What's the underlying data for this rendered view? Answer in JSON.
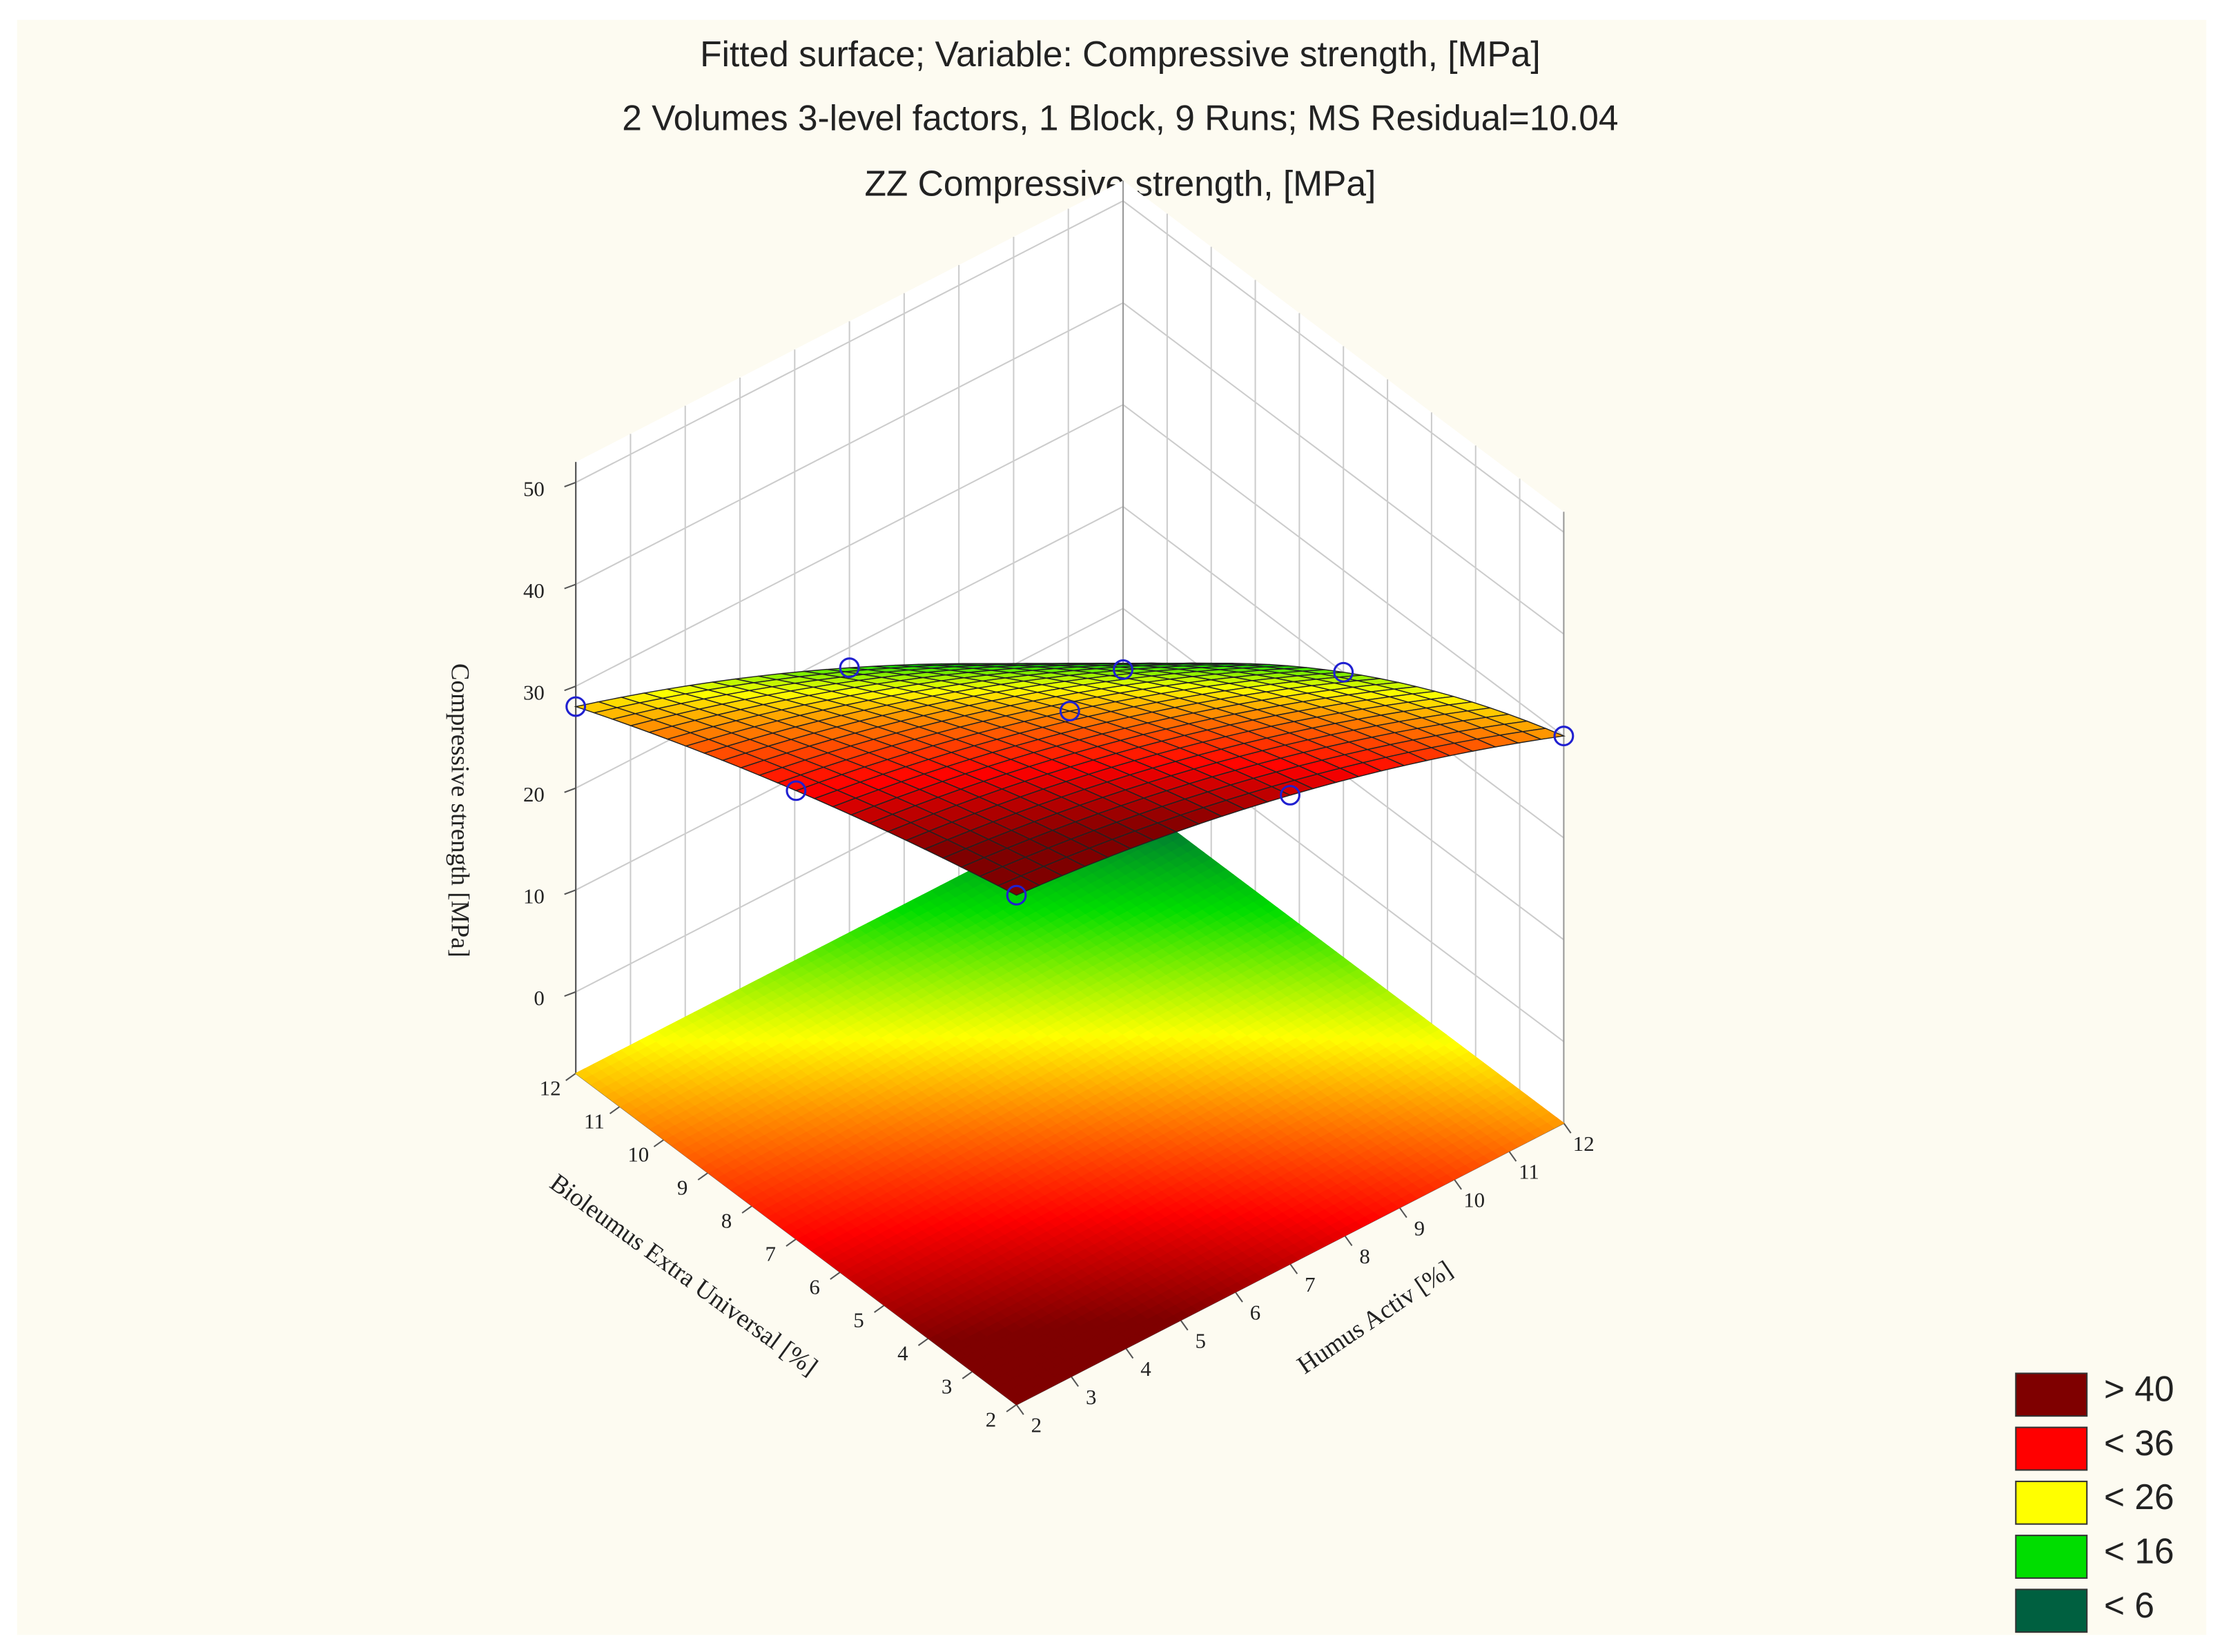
{
  "chart_data": {
    "type": "surface3d",
    "title": "Fitted surface; Variable: Compressive strength, [MPa]",
    "subtitle": "2 Volumes 3-level factors, 1 Block, 9 Runs; MS Residual=10.04",
    "caption": "ZZ Compressive strength, [MPa]",
    "xlabel": "Humus Activ [%]",
    "ylabel": "Bioleumus Extra Universal [%]",
    "zlabel": "Compressive strength [MPa]",
    "xlim": [
      2,
      12
    ],
    "ylim": [
      2,
      12
    ],
    "zlim": [
      -8,
      52
    ],
    "xticks": [
      2,
      3,
      4,
      5,
      6,
      7,
      8,
      9,
      10,
      11,
      12
    ],
    "yticks": [
      2,
      3,
      4,
      5,
      6,
      7,
      8,
      9,
      10,
      11,
      12
    ],
    "zticks": [
      0,
      10,
      20,
      30,
      40,
      50
    ],
    "points": {
      "x": [
        2,
        2,
        2,
        7,
        7,
        7,
        12,
        12,
        12
      ],
      "y": [
        2,
        7,
        12,
        2,
        7,
        12,
        2,
        7,
        12
      ],
      "z": [
        42,
        36,
        28,
        38,
        30,
        18,
        30,
        20,
        4
      ],
      "color": "#2020d0"
    },
    "legend": [
      {
        "value": 40,
        "label": "> 40",
        "color": "#7f0000"
      },
      {
        "value": 36,
        "label": "< 36",
        "color": "#ff0000"
      },
      {
        "value": 26,
        "label": "< 26",
        "color": "#ffff00"
      },
      {
        "value": 16,
        "label": "< 16",
        "color": "#00dd00"
      },
      {
        "value": 6,
        "label": "< 6",
        "color": "#006040"
      }
    ],
    "grid": true
  }
}
